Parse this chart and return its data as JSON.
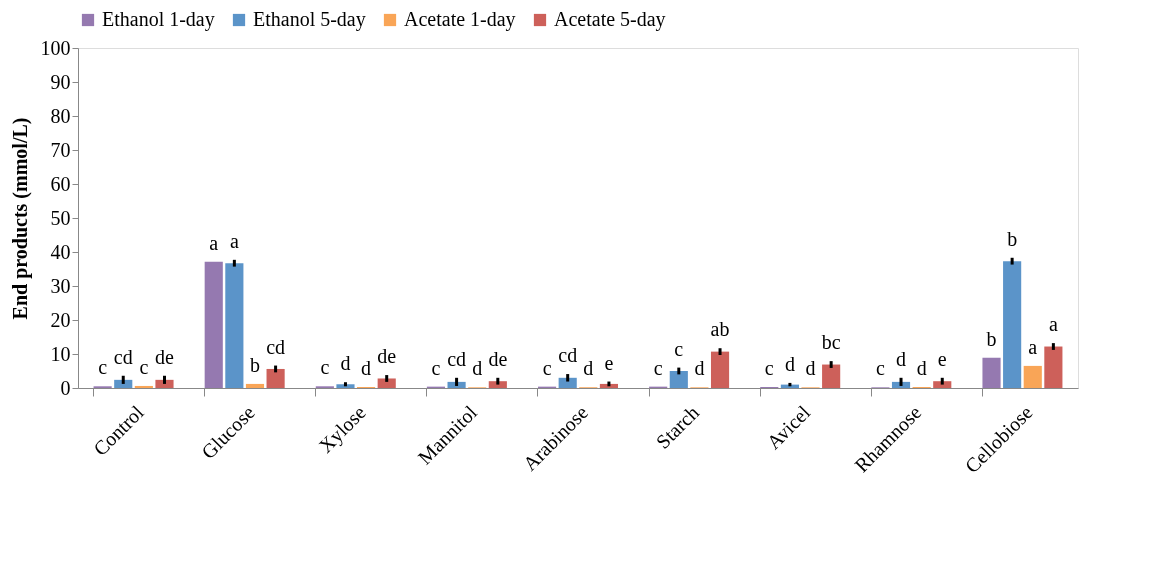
{
  "chart_data": {
    "type": "bar",
    "ylabel": "End products (mmol/L)",
    "categories": [
      "Control",
      "Glucose",
      "Xylose",
      "Mannitol",
      "Arabinose",
      "Starch",
      "Avicel",
      "Rhamnose",
      "Cellobiose"
    ],
    "series": [
      {
        "name": "Ethanol 1-day",
        "color": "#9579b0",
        "values": [
          0.5,
          37.1,
          0.5,
          0.4,
          0.4,
          0.4,
          0.3,
          0.2,
          8.9
        ],
        "value_labels": [
          "c",
          "a",
          "c",
          "c",
          "c",
          "c",
          "c",
          "c",
          "b"
        ]
      },
      {
        "name": "Ethanol 5-day",
        "color": "#5b94c9",
        "values": [
          2.4,
          36.7,
          1.1,
          1.8,
          3.0,
          5.0,
          1.0,
          1.8,
          37.3
        ],
        "errors": [
          1.2,
          1.0,
          0.6,
          1.2,
          1.1,
          1.0,
          0.5,
          1.2,
          1.0
        ],
        "value_labels": [
          "cd",
          "a",
          "d",
          "cd",
          "cd",
          "c",
          "d",
          "d",
          "b"
        ]
      },
      {
        "name": "Acetate 1-day",
        "color": "#f9a557",
        "values": [
          0.6,
          1.2,
          0.3,
          0.2,
          0.2,
          0.2,
          0.2,
          0.3,
          6.5
        ],
        "value_labels": [
          "c",
          "b",
          "d",
          "d",
          "d",
          "d",
          "d",
          "d",
          "a"
        ]
      },
      {
        "name": "Acetate 5-day",
        "color": "#cd605a",
        "values": [
          2.4,
          5.6,
          2.8,
          2.0,
          1.2,
          10.7,
          6.9,
          2.0,
          12.2
        ],
        "errors": [
          1.2,
          1.0,
          1.0,
          1.0,
          0.7,
          1.0,
          1.0,
          1.0,
          1.0
        ],
        "value_labels": [
          "de",
          "cd",
          "de",
          "de",
          "e",
          "ab",
          "bc",
          "e",
          "a"
        ]
      }
    ],
    "ylim": [
      0,
      100
    ],
    "yticks": [
      0,
      10,
      20,
      30,
      40,
      50,
      60,
      70,
      80,
      90,
      100
    ],
    "grid": false,
    "legend": "top"
  }
}
